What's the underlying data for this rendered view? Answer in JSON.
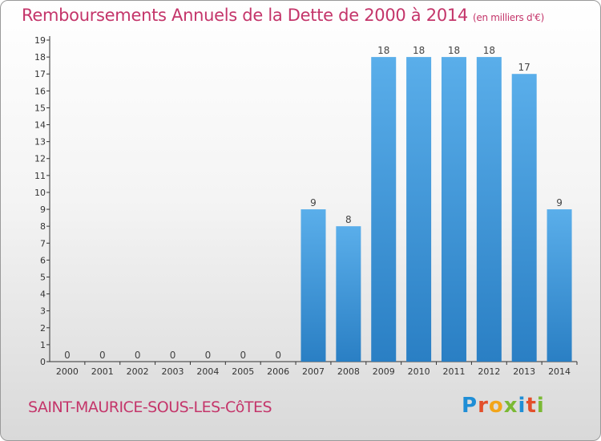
{
  "title": "Remboursements Annuels de la Dette de 2000 à 2014",
  "title_unit": "(en milliers d'€)",
  "commune": "SAINT-MAURICE-SOUS-LES-CôTES",
  "logo_letters": [
    "P",
    "r",
    "o",
    "x",
    "i",
    "t",
    "i"
  ],
  "colors": {
    "title": "#c4356a",
    "bar_top": "#5aaeea",
    "bar_bottom": "#2a7fc4",
    "axis": "#333333"
  },
  "chart_data": {
    "type": "bar",
    "title": "Remboursements Annuels de la Dette de 2000 à 2014",
    "ylabel": "",
    "xlabel": "",
    "categories": [
      "2000",
      "2001",
      "2002",
      "2003",
      "2004",
      "2005",
      "2006",
      "2007",
      "2008",
      "2009",
      "2010",
      "2011",
      "2012",
      "2013",
      "2014"
    ],
    "values": [
      0,
      0,
      0,
      0,
      0,
      0,
      0,
      9,
      8,
      18,
      18,
      18,
      18,
      17,
      9
    ],
    "data_labels": [
      "0",
      "0",
      "0",
      "0",
      "0",
      "0",
      "0",
      "9",
      "8",
      "18",
      "18",
      "18",
      "18",
      "17",
      "9"
    ],
    "yticks": [
      "0",
      "1",
      "2",
      "3",
      "4",
      "5",
      "6",
      "7",
      "8",
      "9",
      "10",
      "11",
      "12",
      "13",
      "14",
      "15",
      "16",
      "17",
      "18",
      "19"
    ],
    "ylim": [
      0,
      19
    ],
    "grid": false,
    "legend": "none"
  }
}
